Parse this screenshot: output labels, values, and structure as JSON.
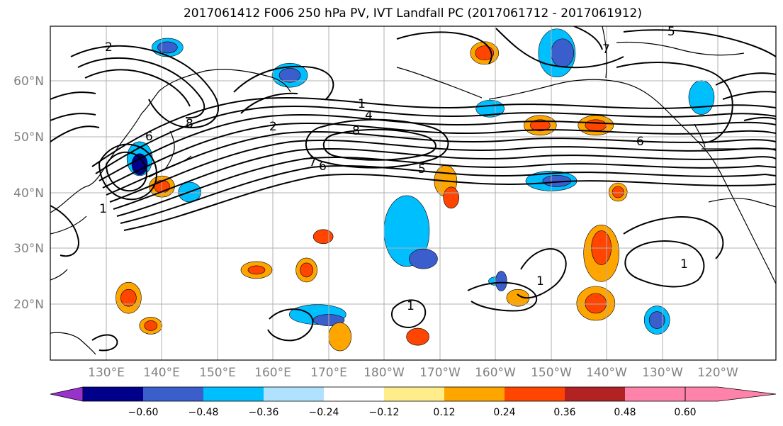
{
  "title": "2017061412 F006 250 hPa PV, IVT Landfall PC (2017061712 - 2017061912)",
  "map": {
    "lat_labels": [
      "60°N",
      "50°N",
      "40°N",
      "30°N",
      "20°N"
    ],
    "lon_labels": [
      "130°E",
      "140°E",
      "150°E",
      "160°E",
      "170°E",
      "180°W",
      "170°W",
      "160°W",
      "150°W",
      "140°W",
      "130°W",
      "120°W"
    ],
    "contour_labels": [
      "2",
      "6",
      "8",
      "6",
      "7",
      "7",
      "4",
      "5",
      "2",
      "1",
      "8",
      "6",
      "5",
      "1",
      "1",
      "1",
      "1"
    ]
  },
  "colorbar": {
    "colors": [
      "#9932cc",
      "#00008b",
      "#3a5fcd",
      "#00bfff",
      "#b0e2ff",
      "#ffffff",
      "#ffec8b",
      "#ffa500",
      "#ff4500",
      "#b22222",
      "#ff82ab"
    ],
    "tick_labels": [
      "−0.60",
      "−0.48",
      "−0.36",
      "−0.24",
      "−0.12",
      "0.12",
      "0.24",
      "0.36",
      "0.48",
      "0.60"
    ]
  },
  "anomalies": [
    {
      "c": "#00bfff",
      "lat": 66,
      "lon": 141
    },
    {
      "c": "#3a5fcd",
      "lat": 66,
      "lon": 141
    },
    {
      "c": "#00bfff",
      "lat": 61,
      "lon": 163
    },
    {
      "c": "#3a5fcd",
      "lat": 61,
      "lon": 163
    },
    {
      "c": "#00bfff",
      "lat": 46,
      "lon": 136
    },
    {
      "c": "#00008b",
      "lat": 45,
      "lon": 136
    },
    {
      "c": "#ffa500",
      "lat": 41,
      "lon": 140
    },
    {
      "c": "#ff4500",
      "lat": 41,
      "lon": 140
    },
    {
      "c": "#00bfff",
      "lat": 40,
      "lon": 145
    },
    {
      "c": "#ffa500",
      "lat": 65,
      "lon": -162
    },
    {
      "c": "#ff4500",
      "lat": 65,
      "lon": -162
    },
    {
      "c": "#00bfff",
      "lat": 65,
      "lon": -149
    },
    {
      "c": "#3a5fcd",
      "lat": 65,
      "lon": -148
    },
    {
      "c": "#00bfff",
      "lat": 55,
      "lon": -161
    },
    {
      "c": "#ffa500",
      "lat": 52,
      "lon": -152
    },
    {
      "c": "#ff4500",
      "lat": 52,
      "lon": -152
    },
    {
      "c": "#ffa500",
      "lat": 52,
      "lon": -142
    },
    {
      "c": "#ff4500",
      "lat": 52,
      "lon": -142
    },
    {
      "c": "#00bfff",
      "lat": 57,
      "lon": -123
    },
    {
      "c": "#ffa500",
      "lat": 42,
      "lon": -169
    },
    {
      "c": "#ff4500",
      "lat": 39,
      "lon": -168
    },
    {
      "c": "#00bfff",
      "lat": 33,
      "lon": -176
    },
    {
      "c": "#3a5fcd",
      "lat": 28,
      "lon": -173
    },
    {
      "c": "#00bfff",
      "lat": 42,
      "lon": -150
    },
    {
      "c": "#3a5fcd",
      "lat": 42,
      "lon": -149
    },
    {
      "c": "#ffa500",
      "lat": 40,
      "lon": -138
    },
    {
      "c": "#ff4500",
      "lat": 40,
      "lon": -138
    },
    {
      "c": "#ffa500",
      "lat": 29,
      "lon": -141
    },
    {
      "c": "#ff4500",
      "lat": 30,
      "lon": -141
    },
    {
      "c": "#ffa500",
      "lat": 20,
      "lon": -142
    },
    {
      "c": "#ff4500",
      "lat": 20,
      "lon": -142
    },
    {
      "c": "#00bfff",
      "lat": 17,
      "lon": -131
    },
    {
      "c": "#3a5fcd",
      "lat": 17,
      "lon": -131
    },
    {
      "c": "#ffa500",
      "lat": 26,
      "lon": 157
    },
    {
      "c": "#ff4500",
      "lat": 26,
      "lon": 157
    },
    {
      "c": "#ffa500",
      "lat": 26,
      "lon": 166
    },
    {
      "c": "#ff4500",
      "lat": 26,
      "lon": 166
    },
    {
      "c": "#ffa500",
      "lat": 21,
      "lon": 134
    },
    {
      "c": "#ff4500",
      "lat": 21,
      "lon": 134
    },
    {
      "c": "#ffa500",
      "lat": 16,
      "lon": 138
    },
    {
      "c": "#ff4500",
      "lat": 16,
      "lon": 138
    },
    {
      "c": "#00bfff",
      "lat": 18,
      "lon": 168
    },
    {
      "c": "#3a5fcd",
      "lat": 17,
      "lon": 170
    },
    {
      "c": "#ffa500",
      "lat": 14,
      "lon": 172
    },
    {
      "c": "#ffa500",
      "lat": 14,
      "lon": -174
    },
    {
      "c": "#ff4500",
      "lat": 14,
      "lon": -174
    },
    {
      "c": "#00bfff",
      "lat": 24,
      "lon": -160
    },
    {
      "c": "#3a5fcd",
      "lat": 24,
      "lon": -159
    },
    {
      "c": "#ffa500",
      "lat": 21,
      "lon": -156
    },
    {
      "c": "#ffa500",
      "lat": 32,
      "lon": 169
    },
    {
      "c": "#ff4500",
      "lat": 32,
      "lon": 169
    }
  ]
}
